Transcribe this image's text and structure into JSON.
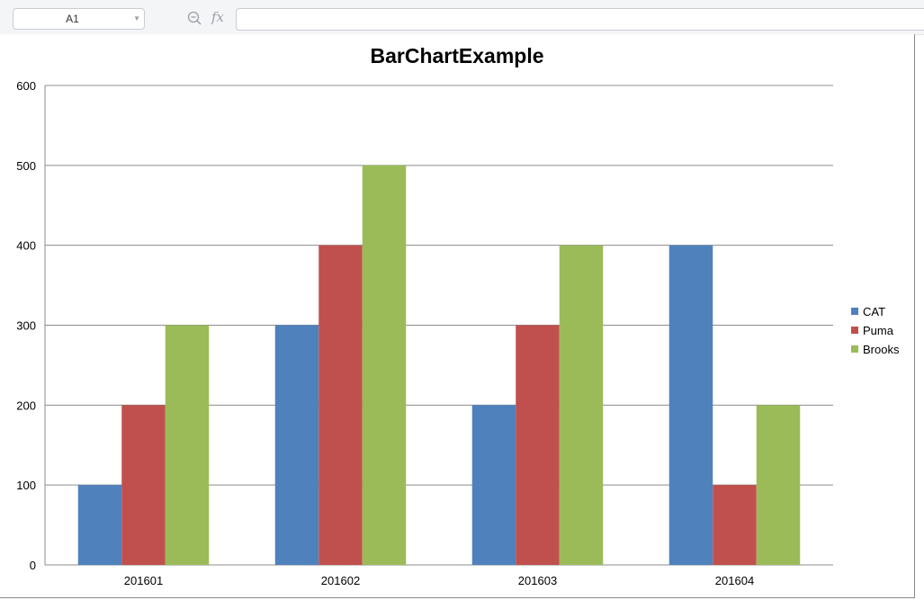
{
  "formula_bar": {
    "cell_ref": "A1",
    "formula": "",
    "zoom_icon": "zoom-out-icon",
    "fx_icon_label": "fx"
  },
  "chart_data": {
    "type": "bar",
    "title": "BarChartExample",
    "xlabel": "",
    "ylabel": "",
    "categories": [
      "201601",
      "201602",
      "201603",
      "201604"
    ],
    "series": [
      {
        "name": "CAT",
        "values": [
          100,
          300,
          200,
          400
        ],
        "color": "#4f81bd"
      },
      {
        "name": "Puma",
        "values": [
          200,
          400,
          300,
          100
        ],
        "color": "#c0504d"
      },
      {
        "name": "Brooks",
        "values": [
          300,
          500,
          400,
          200
        ],
        "color": "#9bbb59"
      }
    ],
    "ylim": [
      0,
      600
    ],
    "yticks": [
      0,
      100,
      200,
      300,
      400,
      500,
      600
    ],
    "grid": true,
    "legend_position": "right"
  }
}
